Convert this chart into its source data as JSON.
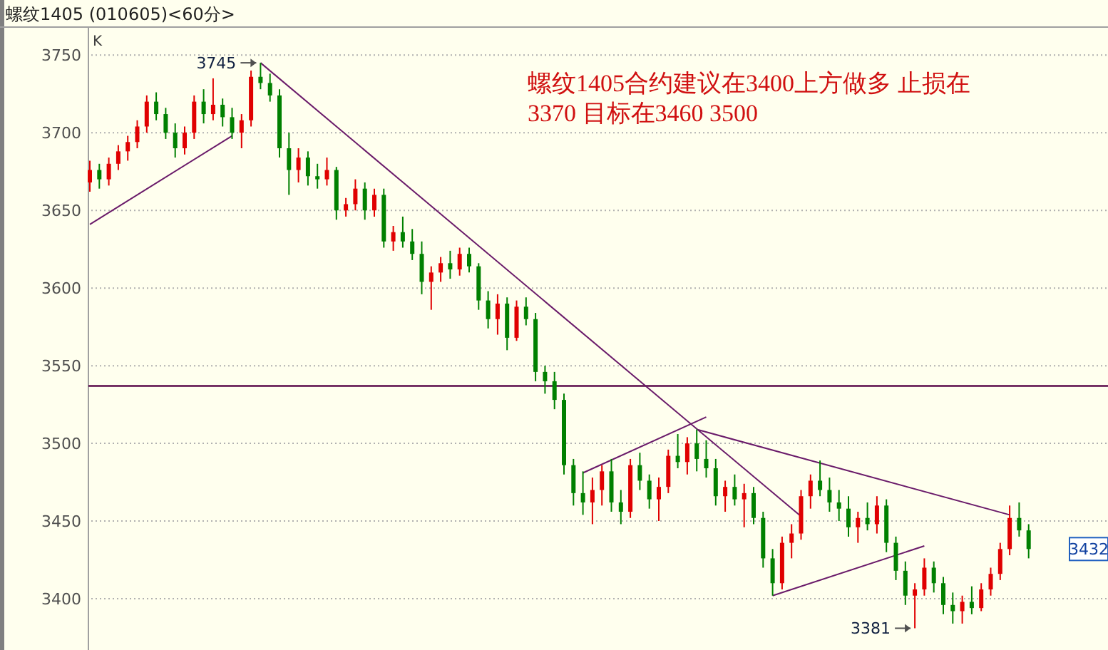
{
  "chart_data": {
    "type": "candlestick",
    "title": "螺纹1405 (010605)<60分>",
    "categories": [
      null,
      null,
      null,
      null,
      null,
      null,
      null,
      null,
      null,
      null,
      null,
      null,
      null,
      null,
      null,
      null,
      null,
      null,
      null,
      null,
      null,
      null,
      null,
      null,
      null,
      null,
      null,
      null,
      null,
      null,
      null,
      null,
      null,
      null,
      null,
      null,
      null,
      null,
      null,
      null,
      null,
      null,
      null,
      null,
      null,
      null,
      null,
      null,
      null,
      null,
      null,
      null,
      null,
      null,
      null,
      null,
      null,
      null,
      null,
      null,
      null,
      null,
      null,
      null,
      null,
      null,
      null,
      null,
      null,
      null,
      null,
      null,
      null,
      null,
      null,
      null,
      null,
      null,
      null,
      null,
      null,
      null,
      null,
      null,
      null,
      null,
      null,
      null,
      null,
      null,
      null,
      null,
      null,
      null,
      null,
      null,
      null,
      null,
      null,
      null
    ],
    "ohlc": [
      [
        3668,
        3682,
        3662,
        3676
      ],
      [
        3676,
        3680,
        3664,
        3670
      ],
      [
        3670,
        3684,
        3666,
        3680
      ],
      [
        3680,
        3692,
        3676,
        3688
      ],
      [
        3688,
        3698,
        3682,
        3694
      ],
      [
        3694,
        3708,
        3690,
        3704
      ],
      [
        3704,
        3724,
        3700,
        3720
      ],
      [
        3720,
        3726,
        3708,
        3712
      ],
      [
        3712,
        3716,
        3696,
        3700
      ],
      [
        3700,
        3706,
        3684,
        3690
      ],
      [
        3690,
        3704,
        3686,
        3700
      ],
      [
        3700,
        3724,
        3696,
        3720
      ],
      [
        3720,
        3728,
        3706,
        3712
      ],
      [
        3712,
        3735,
        3708,
        3718
      ],
      [
        3718,
        3722,
        3704,
        3710
      ],
      [
        3710,
        3716,
        3696,
        3700
      ],
      [
        3700,
        3712,
        3690,
        3708
      ],
      [
        3708,
        3740,
        3704,
        3736
      ],
      [
        3736,
        3745,
        3728,
        3732
      ],
      [
        3732,
        3738,
        3720,
        3724
      ],
      [
        3724,
        3728,
        3684,
        3690
      ],
      [
        3690,
        3700,
        3660,
        3676
      ],
      [
        3676,
        3690,
        3668,
        3684
      ],
      [
        3684,
        3688,
        3666,
        3672
      ],
      [
        3672,
        3680,
        3664,
        3670
      ],
      [
        3670,
        3684,
        3666,
        3676
      ],
      [
        3676,
        3678,
        3644,
        3650
      ],
      [
        3650,
        3658,
        3646,
        3654
      ],
      [
        3654,
        3670,
        3650,
        3664
      ],
      [
        3664,
        3668,
        3644,
        3650
      ],
      [
        3650,
        3664,
        3646,
        3660
      ],
      [
        3660,
        3664,
        3626,
        3630
      ],
      [
        3630,
        3640,
        3624,
        3636
      ],
      [
        3636,
        3646,
        3626,
        3630
      ],
      [
        3630,
        3638,
        3618,
        3622
      ],
      [
        3622,
        3630,
        3596,
        3604
      ],
      [
        3604,
        3614,
        3586,
        3610
      ],
      [
        3610,
        3620,
        3604,
        3616
      ],
      [
        3616,
        3624,
        3606,
        3612
      ],
      [
        3612,
        3626,
        3608,
        3622
      ],
      [
        3622,
        3626,
        3610,
        3614
      ],
      [
        3614,
        3616,
        3586,
        3592
      ],
      [
        3592,
        3598,
        3574,
        3580
      ],
      [
        3580,
        3596,
        3570,
        3590
      ],
      [
        3590,
        3594,
        3560,
        3568
      ],
      [
        3568,
        3592,
        3566,
        3588
      ],
      [
        3588,
        3594,
        3576,
        3580
      ],
      [
        3580,
        3584,
        3540,
        3546
      ],
      [
        3546,
        3550,
        3532,
        3540
      ],
      [
        3540,
        3546,
        3522,
        3528
      ],
      [
        3528,
        3532,
        3480,
        3486
      ],
      [
        3486,
        3490,
        3460,
        3468
      ],
      [
        3468,
        3482,
        3454,
        3462
      ],
      [
        3462,
        3478,
        3448,
        3470
      ],
      [
        3470,
        3486,
        3460,
        3482
      ],
      [
        3482,
        3490,
        3456,
        3462
      ],
      [
        3462,
        3470,
        3448,
        3456
      ],
      [
        3456,
        3490,
        3452,
        3486
      ],
      [
        3486,
        3494,
        3470,
        3476
      ],
      [
        3476,
        3480,
        3458,
        3464
      ],
      [
        3464,
        3478,
        3450,
        3472
      ],
      [
        3472,
        3496,
        3468,
        3492
      ],
      [
        3492,
        3506,
        3484,
        3488
      ],
      [
        3488,
        3504,
        3480,
        3500
      ],
      [
        3500,
        3509,
        3482,
        3490
      ],
      [
        3490,
        3502,
        3478,
        3484
      ],
      [
        3484,
        3490,
        3460,
        3466
      ],
      [
        3466,
        3476,
        3456,
        3472
      ],
      [
        3472,
        3480,
        3460,
        3464
      ],
      [
        3464,
        3474,
        3446,
        3468
      ],
      [
        3468,
        3472,
        3448,
        3452
      ],
      [
        3452,
        3456,
        3420,
        3426
      ],
      [
        3426,
        3432,
        3402,
        3410
      ],
      [
        3410,
        3440,
        3406,
        3436
      ],
      [
        3436,
        3448,
        3426,
        3442
      ],
      [
        3442,
        3470,
        3438,
        3466
      ],
      [
        3466,
        3480,
        3458,
        3476
      ],
      [
        3476,
        3489,
        3466,
        3470
      ],
      [
        3470,
        3478,
        3456,
        3462
      ],
      [
        3462,
        3470,
        3450,
        3458
      ],
      [
        3458,
        3466,
        3440,
        3446
      ],
      [
        3446,
        3456,
        3436,
        3452
      ],
      [
        3452,
        3462,
        3444,
        3448
      ],
      [
        3448,
        3466,
        3442,
        3460
      ],
      [
        3460,
        3464,
        3430,
        3436
      ],
      [
        3436,
        3440,
        3412,
        3418
      ],
      [
        3418,
        3424,
        3396,
        3402
      ],
      [
        3402,
        3410,
        3381,
        3406
      ],
      [
        3406,
        3426,
        3402,
        3420
      ],
      [
        3420,
        3424,
        3404,
        3410
      ],
      [
        3410,
        3414,
        3390,
        3396
      ],
      [
        3396,
        3404,
        3384,
        3392
      ],
      [
        3392,
        3402,
        3384,
        3398
      ],
      [
        3398,
        3408,
        3390,
        3394
      ],
      [
        3394,
        3410,
        3392,
        3406
      ],
      [
        3406,
        3420,
        3402,
        3416
      ],
      [
        3416,
        3436,
        3412,
        3432
      ],
      [
        3432,
        3460,
        3428,
        3452
      ],
      [
        3452,
        3462,
        3440,
        3444
      ],
      [
        3444,
        3448,
        3426,
        3432
      ]
    ],
    "series": [
      {
        "type": "line",
        "values": [
          3641,
          null,
          null,
          null,
          null,
          null,
          null,
          null,
          null,
          null,
          null,
          null,
          null,
          null,
          null,
          3698,
          null,
          null,
          null,
          null,
          null,
          null,
          null,
          null,
          null,
          null,
          null,
          null,
          null,
          null,
          null,
          null,
          null,
          null,
          null,
          null,
          null,
          null,
          null,
          null,
          null,
          null,
          null,
          null,
          null,
          null,
          null,
          null,
          null,
          null,
          null,
          null,
          null,
          null,
          null,
          null,
          null,
          null,
          null,
          null,
          null,
          null,
          null,
          null,
          null,
          null,
          null,
          null,
          null,
          null,
          null,
          null,
          null,
          null,
          null,
          null,
          null,
          null,
          null,
          null,
          null,
          null,
          null,
          null,
          null,
          null,
          null,
          null,
          null,
          null,
          null,
          null,
          null,
          null,
          null,
          null,
          null,
          null,
          null,
          null
        ],
        "color": "#6a1b6a"
      },
      {
        "type": "line",
        "values": [
          null,
          null,
          null,
          null,
          null,
          null,
          null,
          null,
          null,
          null,
          null,
          null,
          null,
          null,
          null,
          null,
          null,
          null,
          3745,
          null,
          null,
          null,
          null,
          null,
          null,
          null,
          null,
          null,
          null,
          null,
          null,
          null,
          null,
          null,
          null,
          null,
          null,
          null,
          null,
          null,
          null,
          null,
          null,
          null,
          null,
          null,
          null,
          null,
          null,
          null,
          null,
          null,
          null,
          null,
          null,
          null,
          null,
          null,
          null,
          null,
          null,
          null,
          null,
          null,
          null,
          null,
          null,
          null,
          null,
          null,
          null,
          null,
          null,
          null,
          null,
          3453,
          null,
          null,
          null,
          null,
          null,
          null,
          null,
          null,
          null,
          null,
          null,
          null,
          null,
          null,
          null,
          null,
          null,
          null,
          null,
          null,
          null,
          null,
          null,
          null
        ],
        "color": "#6a1b6a"
      },
      {
        "type": "line",
        "values": [
          null,
          null,
          null,
          null,
          null,
          null,
          null,
          null,
          null,
          null,
          null,
          null,
          null,
          null,
          null,
          null,
          null,
          null,
          null,
          null,
          null,
          null,
          null,
          null,
          null,
          null,
          null,
          null,
          null,
          null,
          null,
          null,
          null,
          null,
          null,
          null,
          null,
          null,
          null,
          null,
          null,
          null,
          null,
          null,
          null,
          null,
          null,
          null,
          null,
          null,
          null,
          null,
          3481,
          null,
          null,
          null,
          null,
          null,
          null,
          null,
          null,
          null,
          null,
          null,
          null,
          3517,
          null,
          null,
          null,
          null,
          null,
          null,
          null,
          null,
          null,
          null,
          null,
          null,
          null,
          null,
          null,
          null,
          null,
          null,
          null,
          null,
          null,
          null,
          null,
          null,
          null,
          null,
          null,
          null,
          null,
          null,
          null,
          null,
          null,
          null
        ],
        "color": "#6a1b6a"
      },
      {
        "type": "line",
        "values": [
          null,
          null,
          null,
          null,
          null,
          null,
          null,
          null,
          null,
          null,
          null,
          null,
          null,
          null,
          null,
          null,
          null,
          null,
          null,
          null,
          null,
          null,
          null,
          null,
          null,
          null,
          null,
          null,
          null,
          null,
          null,
          null,
          null,
          null,
          null,
          null,
          null,
          null,
          null,
          null,
          null,
          null,
          null,
          null,
          null,
          null,
          null,
          null,
          null,
          null,
          null,
          null,
          null,
          null,
          null,
          null,
          null,
          null,
          null,
          null,
          null,
          null,
          null,
          null,
          3509,
          null,
          null,
          null,
          null,
          null,
          null,
          null,
          null,
          null,
          null,
          null,
          null,
          null,
          null,
          null,
          null,
          null,
          null,
          null,
          null,
          null,
          null,
          null,
          null,
          null,
          null,
          null,
          null,
          null,
          null,
          null,
          null,
          3454,
          null,
          null
        ],
        "color": "#6a1b6a"
      },
      {
        "type": "line",
        "values": [
          null,
          null,
          null,
          null,
          null,
          null,
          null,
          null,
          null,
          null,
          null,
          null,
          null,
          null,
          null,
          null,
          null,
          null,
          null,
          null,
          null,
          null,
          null,
          null,
          null,
          null,
          null,
          null,
          null,
          null,
          null,
          null,
          null,
          null,
          null,
          null,
          null,
          null,
          null,
          null,
          null,
          null,
          null,
          null,
          null,
          null,
          null,
          null,
          null,
          null,
          null,
          null,
          null,
          null,
          null,
          null,
          null,
          null,
          null,
          null,
          null,
          null,
          null,
          null,
          null,
          null,
          null,
          null,
          null,
          null,
          null,
          null,
          3402,
          null,
          null,
          null,
          null,
          null,
          null,
          null,
          null,
          null,
          null,
          null,
          null,
          null,
          null,
          null,
          3434,
          null,
          null,
          null,
          null,
          null,
          null,
          null,
          null,
          null,
          null,
          null
        ],
        "color": "#6a1b6a"
      }
    ],
    "ylim": [
      3367,
      3768
    ],
    "yticks": [
      3400,
      3450,
      3500,
      3550,
      3600,
      3650,
      3700,
      3750
    ],
    "grid": "y",
    "tick_labels": "y",
    "ref_lines": [
      {
        "axis": "y",
        "value": 3537,
        "color": "#5a0a4a"
      }
    ],
    "annotations": [
      "K",
      "螺纹1405合约建议在3400上方做多 止损在\n3370 目标在3460 3500",
      "3745",
      "3381",
      "3432"
    ]
  }
}
